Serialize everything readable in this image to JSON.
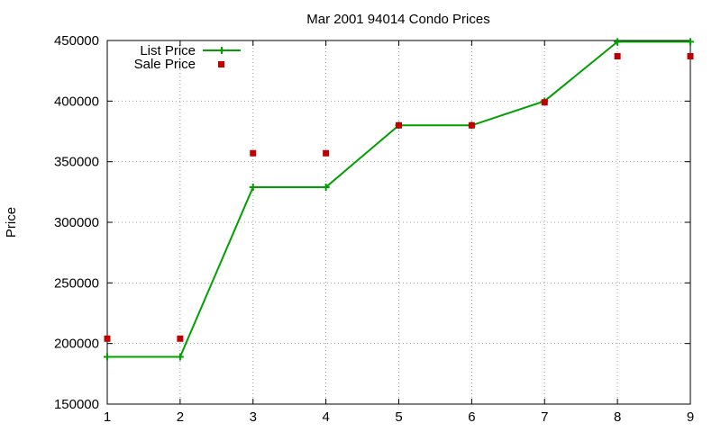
{
  "chart_data": {
    "type": "line",
    "title": "Mar 2001 94014 Condo Prices",
    "xlabel": "",
    "ylabel": "Price",
    "xlim": [
      1,
      9
    ],
    "ylim": [
      150000,
      450000
    ],
    "x_ticks": [
      "1",
      "2",
      "3",
      "4",
      "5",
      "6",
      "7",
      "8",
      "9"
    ],
    "y_ticks": [
      "150000",
      "200000",
      "250000",
      "300000",
      "350000",
      "400000",
      "450000"
    ],
    "grid": true,
    "legend_position": "top-left",
    "series": [
      {
        "name": "List Price",
        "style": "line-plus",
        "color": "#00a000",
        "x": [
          1,
          2,
          3,
          4,
          5,
          6,
          7,
          8,
          9
        ],
        "values": [
          189000,
          189000,
          329000,
          329000,
          380000,
          380000,
          400000,
          449000,
          449000
        ]
      },
      {
        "name": "Sale Price",
        "style": "square-points",
        "color": "#c00000",
        "x": [
          1,
          2,
          3,
          4,
          5,
          6,
          7,
          8,
          9
        ],
        "values": [
          204000,
          204000,
          357000,
          357000,
          380000,
          380000,
          399000,
          437000,
          437000
        ]
      }
    ]
  }
}
